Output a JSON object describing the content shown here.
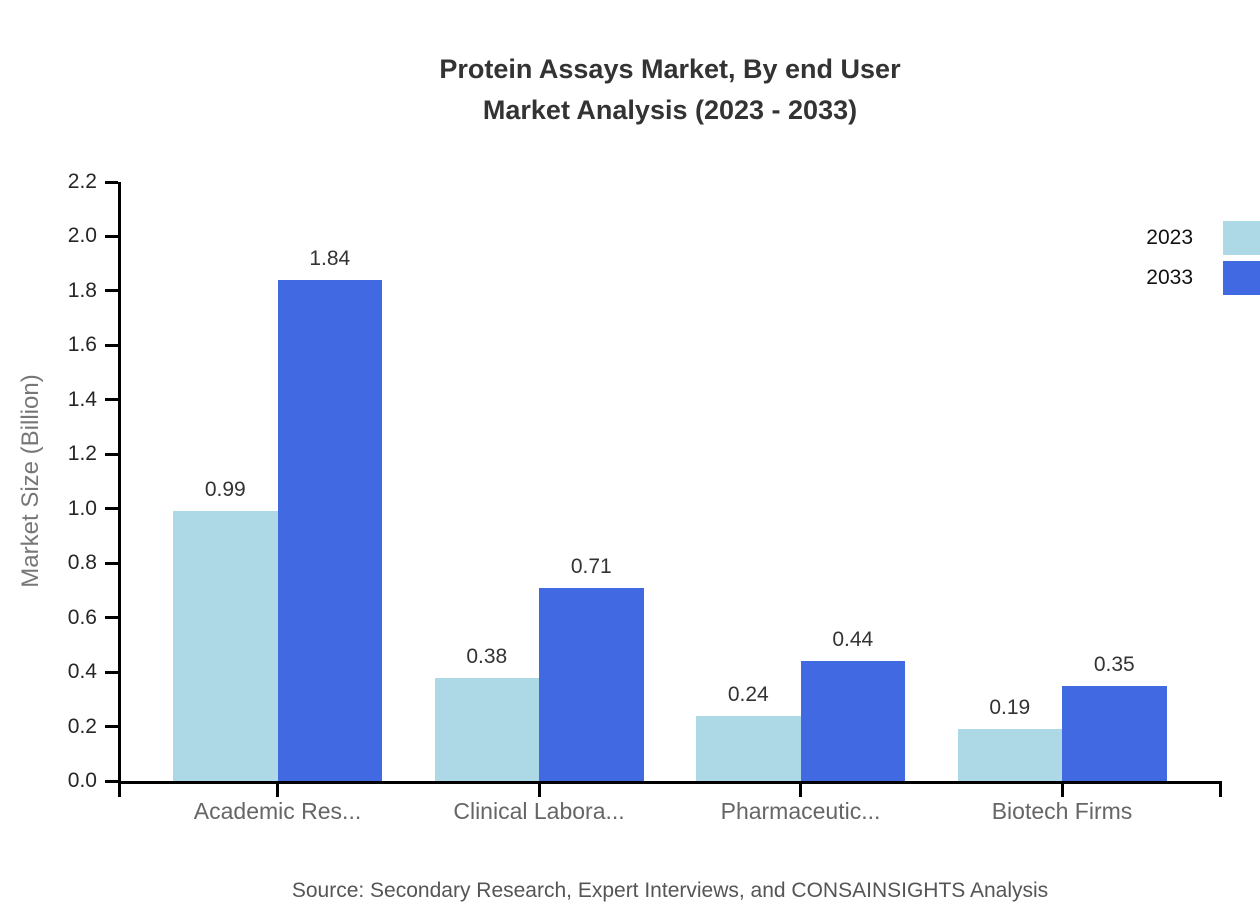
{
  "title": {
    "line1": "Protein Assays Market, By end User",
    "line2": "Market Analysis (2023 - 2033)"
  },
  "chart_data": {
    "type": "bar",
    "categories": [
      "Academic Res...",
      "Clinical Labora...",
      "Pharmaceutic...",
      "Biotech Firms"
    ],
    "series": [
      {
        "name": "2023",
        "color": "#ADD8E6",
        "values": [
          0.99,
          0.38,
          0.24,
          0.19
        ]
      },
      {
        "name": "2033",
        "color": "#4169E1",
        "values": [
          1.84,
          0.71,
          0.44,
          0.35
        ]
      }
    ],
    "ylabel": "Market Size (Billion)",
    "xlabel": "",
    "ylim": [
      0,
      2.2
    ],
    "yticks": [
      "0.0",
      "0.2",
      "0.4",
      "0.6",
      "0.8",
      "1.0",
      "1.2",
      "1.4",
      "1.6",
      "1.8",
      "2.0",
      "2.2"
    ],
    "grid": false,
    "legend_position": "top-right",
    "value_labels": true
  },
  "source": "Source: Secondary Research, Expert Interviews, and CONSAINSIGHTS Analysis",
  "colors": {
    "axis": "#000000",
    "tick_label": "#262626",
    "category_label": "#666666",
    "value_label": "#333333",
    "title": "#333333",
    "ylabel": "#777777",
    "source": "#555555",
    "series_2023": "#ADD8E6",
    "series_2033": "#4169E1"
  }
}
